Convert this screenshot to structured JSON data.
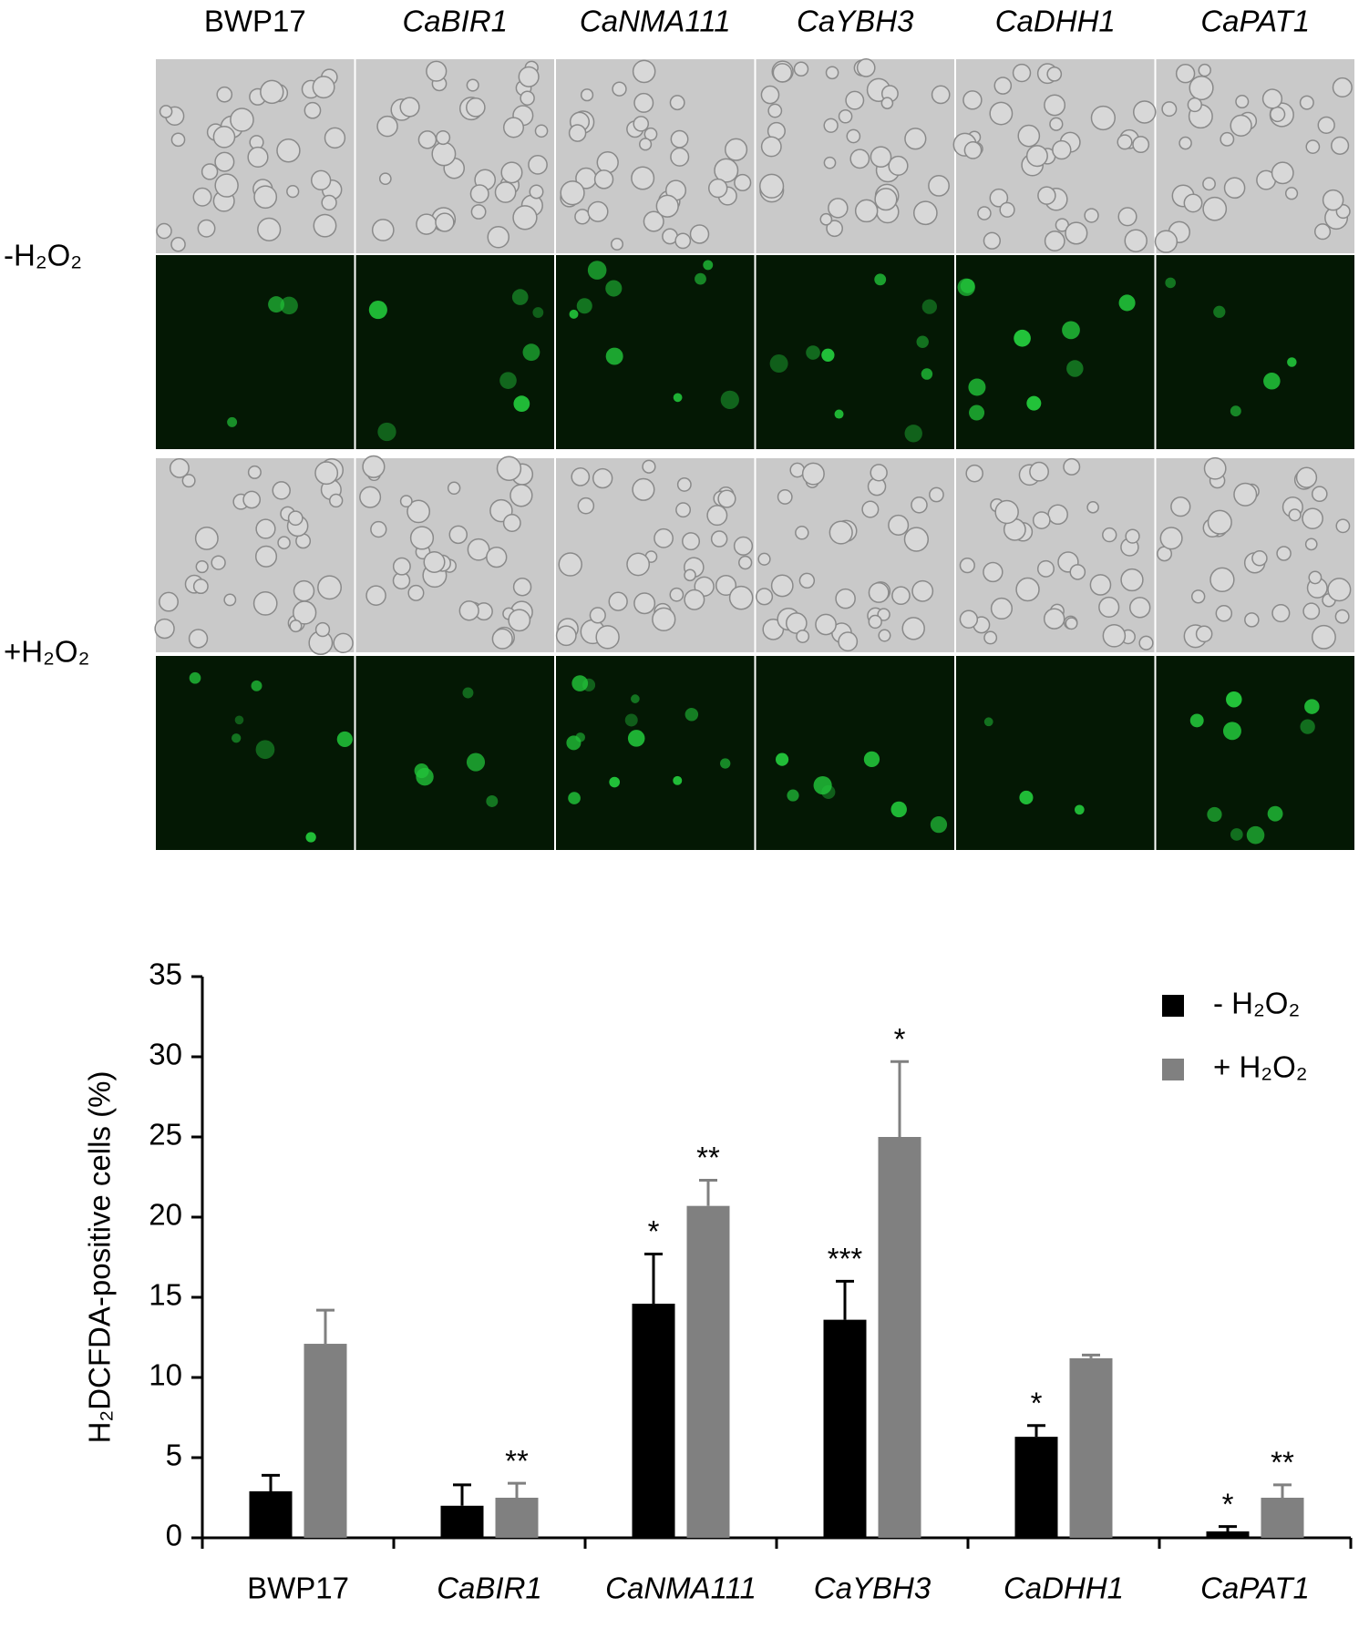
{
  "panel": {
    "columns": [
      "BWP17",
      "CaBIR1",
      "CaNMA111",
      "CaYBH3",
      "CaDHH1",
      "CaPAT1"
    ],
    "rows": [
      "-H₂O₂",
      "+H₂O₂"
    ]
  },
  "chart_data": {
    "type": "bar",
    "ylabel": "H₂DCFDA-positive cells (%)",
    "categories": [
      "BWP17",
      "CaBIR1",
      "CaNMA111",
      "CaYBH3",
      "CaDHH1",
      "CaPAT1"
    ],
    "series": [
      {
        "name": "- H₂O₂",
        "color": "#000000",
        "values": [
          2.9,
          2.0,
          14.6,
          13.6,
          6.3,
          0.4
        ],
        "errors": [
          1.0,
          1.3,
          3.1,
          2.4,
          0.7,
          0.3
        ],
        "annotations": [
          null,
          null,
          "*",
          "***",
          "*",
          "*"
        ]
      },
      {
        "name": "+ H₂O₂",
        "color": "#808080",
        "values": [
          12.1,
          2.5,
          20.7,
          25.0,
          11.2,
          2.5
        ],
        "errors": [
          2.1,
          0.9,
          1.6,
          4.7,
          0.2,
          0.8
        ],
        "annotations": [
          null,
          "**",
          "**",
          "*",
          null,
          "**"
        ]
      }
    ],
    "ylim": [
      0,
      35
    ],
    "yticks": [
      0,
      5,
      10,
      15,
      20,
      25,
      30,
      35
    ],
    "legend": "upper right"
  }
}
